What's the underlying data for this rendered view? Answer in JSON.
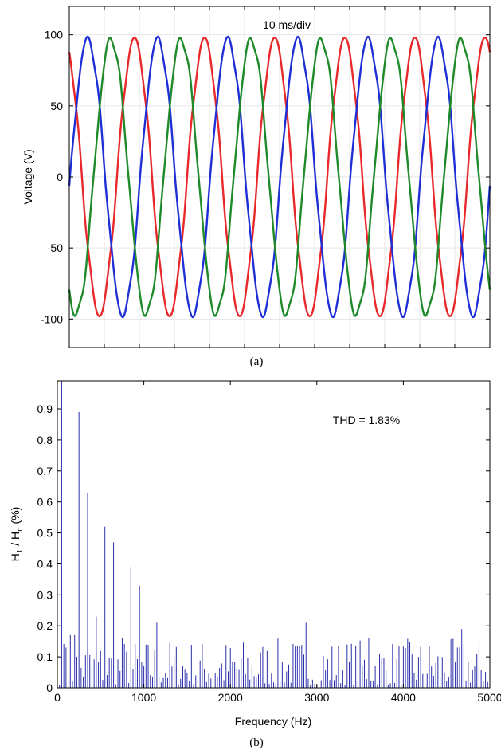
{
  "chart_data": [
    {
      "type": "line",
      "panel_label": "(a)",
      "ylabel": "Voltage (V)",
      "annotation": "10 ms/div",
      "ylim": [
        -120,
        120
      ],
      "yticks": [
        100,
        50,
        0,
        -50,
        -100
      ],
      "xlim": [
        0,
        0.12
      ],
      "x_divisions": 12,
      "x_tick_labels_shown": false,
      "grid": true,
      "frequency_hz": 50,
      "amplitude_v": 97,
      "series": [
        {
          "color": "#e8282a",
          "phase_deg": 115
        },
        {
          "color": "#1f2fd6",
          "phase_deg": -5
        },
        {
          "color": "#1e8a2a",
          "phase_deg": 235
        }
      ]
    },
    {
      "type": "bar",
      "panel_label": "(b)",
      "xlabel": "Frequency (Hz)",
      "ylabel_main": "H",
      "ylabel_sub1": "1",
      "ylabel_mid": " / H",
      "ylabel_sub2": "n",
      "ylabel_tail": " (%)",
      "annotation": "THD = 1.83%",
      "xlim": [
        0,
        5000
      ],
      "ylim": [
        0,
        0.99
      ],
      "xticks": [
        0,
        1000,
        2000,
        3000,
        4000,
        5000
      ],
      "yticks": [
        0,
        0.1,
        0.2,
        0.3,
        0.4,
        0.5,
        0.6,
        0.7,
        0.8,
        0.9
      ],
      "ytick_labels": [
        "0",
        "0.1",
        "0.2",
        "0.3",
        "0.4",
        "0.5",
        "0.6",
        "0.7",
        "0.8",
        "0.9"
      ],
      "bar_color": "#2a2faa",
      "bar_spacing_hz": 25,
      "notable_bars": [
        {
          "x": 50,
          "y": 0.99
        },
        {
          "x": 250,
          "y": 0.89
        },
        {
          "x": 350,
          "y": 0.63
        },
        {
          "x": 550,
          "y": 0.52
        },
        {
          "x": 650,
          "y": 0.47
        },
        {
          "x": 850,
          "y": 0.39
        },
        {
          "x": 950,
          "y": 0.33
        },
        {
          "x": 450,
          "y": 0.23
        },
        {
          "x": 750,
          "y": 0.16
        },
        {
          "x": 1150,
          "y": 0.21
        },
        {
          "x": 2875,
          "y": 0.21
        },
        {
          "x": 4675,
          "y": 0.19
        },
        {
          "x": 150,
          "y": 0.17
        },
        {
          "x": 200,
          "y": 0.17
        },
        {
          "x": 100,
          "y": 0.13
        },
        {
          "x": 3600,
          "y": 0.16
        },
        {
          "x": 4625,
          "y": 0.13
        }
      ],
      "noise_floor_max": 0.16
    }
  ]
}
